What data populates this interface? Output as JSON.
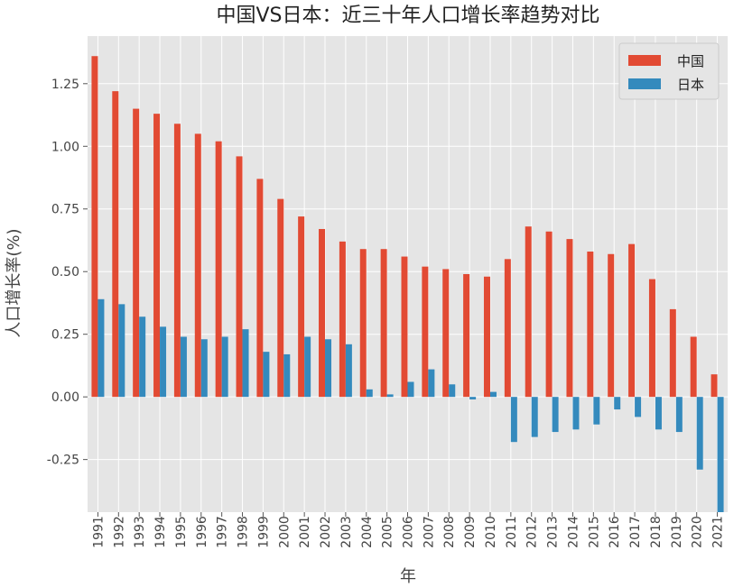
{
  "chart_data": {
    "type": "bar",
    "title": "中国VS日本：近三十年人口增长率趋势对比",
    "xlabel": "年",
    "ylabel": "人口增长率(%)",
    "ylim": [
      -0.46,
      1.44
    ],
    "yticks": [
      "-0.25",
      "0.00",
      "0.25",
      "0.50",
      "0.75",
      "1.00",
      "1.25"
    ],
    "grid": true,
    "legend_position": "top-right",
    "categories": [
      "1991",
      "1992",
      "1993",
      "1994",
      "1995",
      "1996",
      "1997",
      "1998",
      "1999",
      "2000",
      "2001",
      "2002",
      "2003",
      "2004",
      "2005",
      "2006",
      "2007",
      "2008",
      "2009",
      "2010",
      "2011",
      "2012",
      "2013",
      "2014",
      "2015",
      "2016",
      "2017",
      "2018",
      "2019",
      "2020",
      "2021"
    ],
    "series": [
      {
        "name": "中国",
        "color": "#E24A33",
        "values": [
          1.36,
          1.22,
          1.15,
          1.13,
          1.09,
          1.05,
          1.02,
          0.96,
          0.87,
          0.79,
          0.72,
          0.67,
          0.62,
          0.59,
          0.59,
          0.56,
          0.52,
          0.51,
          0.49,
          0.48,
          0.55,
          0.68,
          0.66,
          0.63,
          0.58,
          0.57,
          0.61,
          0.47,
          0.35,
          0.24,
          0.09
        ]
      },
      {
        "name": "日本",
        "color": "#348ABD",
        "values": [
          0.39,
          0.37,
          0.32,
          0.28,
          0.24,
          0.23,
          0.24,
          0.27,
          0.18,
          0.17,
          0.24,
          0.23,
          0.21,
          0.03,
          0.01,
          0.06,
          0.11,
          0.05,
          -0.01,
          0.02,
          -0.18,
          -0.16,
          -0.14,
          -0.13,
          -0.11,
          -0.05,
          -0.08,
          -0.13,
          -0.14,
          -0.29,
          -0.46
        ]
      }
    ]
  }
}
